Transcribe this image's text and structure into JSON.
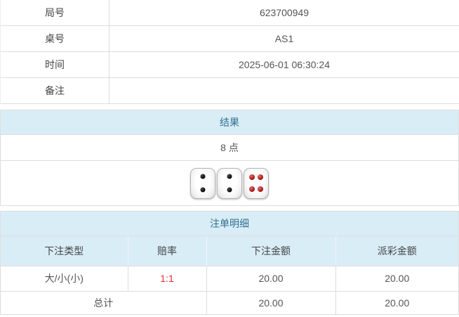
{
  "info_table": {
    "rows": [
      {
        "label": "局号",
        "value": "623700949"
      },
      {
        "label": "桌号",
        "value": "AS1"
      },
      {
        "label": "时间",
        "value": "2025-06-01 06:30:24"
      },
      {
        "label": "备注",
        "value": ""
      }
    ]
  },
  "result_panel": {
    "title": "结果",
    "points": "8 点",
    "dice": [
      {
        "value": 2,
        "color": "black"
      },
      {
        "value": 2,
        "color": "black"
      },
      {
        "value": 4,
        "color": "red"
      }
    ]
  },
  "bets_panel": {
    "title": "注单明细",
    "columns": [
      "下注类型",
      "赔率",
      "下注金额",
      "派彩金额"
    ],
    "rows": [
      {
        "type": "大/小(小)",
        "odds": "1:1",
        "bet_amount": "20.00",
        "payout_amount": "20.00"
      }
    ],
    "total": {
      "label": "总计",
      "bet_amount": "20.00",
      "payout_amount": "20.00"
    }
  },
  "colors": {
    "header_bg": "#d9edf7",
    "header_text": "#31708f",
    "border": "#dddddd",
    "text": "#555555",
    "odds_red": "#ed2b2f"
  }
}
